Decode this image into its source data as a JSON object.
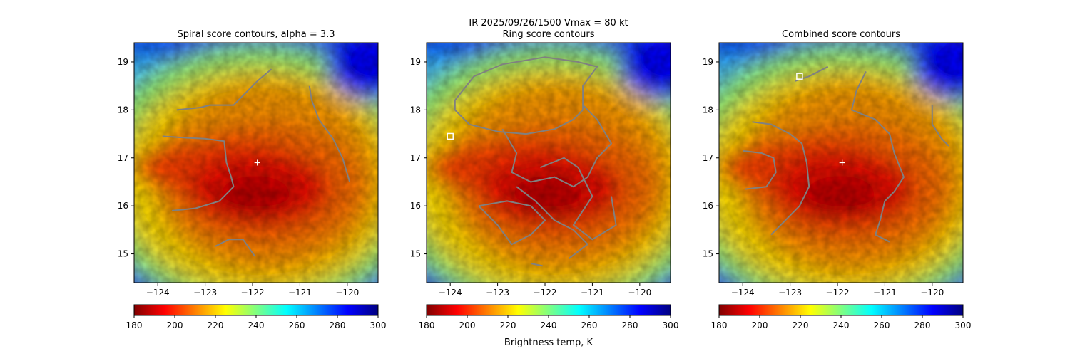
{
  "figure": {
    "suptitle_line1": "IR  2025/09/26/1500    Vmax = 80 kt",
    "colorbar_label": "Brightness temp, K"
  },
  "colors": {
    "contour": "#808080",
    "colormap": [
      "#800000",
      "#ff0000",
      "#ff8000",
      "#ffff00",
      "#80ff80",
      "#00ffff",
      "#0080ff",
      "#0000ff",
      "#000080"
    ]
  },
  "chart_data": [
    {
      "type": "heatmap",
      "title": "Spiral score contours, alpha =  3.3",
      "xlim": [
        -124.5,
        -119.35
      ],
      "ylim": [
        14.4,
        19.4
      ],
      "xticks": [
        -124,
        -123,
        -122,
        -121,
        -120
      ],
      "xtick_labels": [
        "−124",
        "−123",
        "−122",
        "−121",
        "−120"
      ],
      "yticks": [
        15,
        16,
        17,
        18,
        19
      ],
      "ytick_labels": [
        "15",
        "16",
        "17",
        "18",
        "19"
      ],
      "colorbar": {
        "range": [
          180,
          300
        ],
        "ticks": [
          180,
          200,
          220,
          240,
          260,
          280,
          300
        ],
        "tick_labels": [
          "180",
          "200",
          "220",
          "240",
          "260",
          "280",
          "300"
        ]
      },
      "center_marker": {
        "lon": -121.9,
        "lat": 16.9,
        "symbol": "+"
      },
      "contours": [
        [
          [
            -123.6,
            18.0
          ],
          [
            -123.1,
            18.05
          ],
          [
            -122.9,
            18.1
          ],
          [
            -122.4,
            18.1
          ],
          [
            -122.1,
            18.4
          ],
          [
            -121.9,
            18.6
          ],
          [
            -121.6,
            18.85
          ]
        ],
        [
          [
            -123.9,
            17.45
          ],
          [
            -123.4,
            17.42
          ],
          [
            -123.0,
            17.4
          ],
          [
            -122.6,
            17.35
          ],
          [
            -122.55,
            16.9
          ],
          [
            -122.45,
            16.6
          ],
          [
            -122.4,
            16.4
          ],
          [
            -122.7,
            16.1
          ],
          [
            -123.2,
            15.95
          ],
          [
            -123.7,
            15.9
          ]
        ],
        [
          [
            -120.8,
            18.5
          ],
          [
            -120.75,
            18.2
          ],
          [
            -120.6,
            17.8
          ],
          [
            -120.3,
            17.4
          ],
          [
            -120.1,
            17.0
          ],
          [
            -119.95,
            16.5
          ]
        ],
        [
          [
            -122.8,
            15.15
          ],
          [
            -122.5,
            15.3
          ],
          [
            -122.2,
            15.3
          ],
          [
            -121.95,
            14.95
          ]
        ]
      ]
    },
    {
      "type": "heatmap",
      "title": "Ring score contours",
      "xlim": [
        -124.5,
        -119.35
      ],
      "ylim": [
        14.4,
        19.4
      ],
      "xticks": [
        -124,
        -123,
        -122,
        -121,
        -120
      ],
      "xtick_labels": [
        "−124",
        "−123",
        "−122",
        "−121",
        "−120"
      ],
      "yticks": [
        15,
        16,
        17,
        18,
        19
      ],
      "ytick_labels": [
        "15",
        "16",
        "17",
        "18",
        "19"
      ],
      "colorbar": {
        "range": [
          180,
          300
        ],
        "ticks": [
          180,
          200,
          220,
          240,
          260,
          280,
          300
        ],
        "tick_labels": [
          "180",
          "200",
          "220",
          "240",
          "260",
          "280",
          "300"
        ]
      },
      "square_marker": {
        "lon": -124.0,
        "lat": 17.45
      },
      "contours": [
        [
          [
            -123.9,
            18.2
          ],
          [
            -123.5,
            18.7
          ],
          [
            -122.9,
            18.95
          ],
          [
            -122.0,
            19.1
          ],
          [
            -121.3,
            19.0
          ],
          [
            -120.9,
            18.9
          ],
          [
            -121.2,
            18.5
          ],
          [
            -121.2,
            18.0
          ],
          [
            -121.4,
            17.8
          ],
          [
            -121.8,
            17.6
          ],
          [
            -122.4,
            17.5
          ],
          [
            -123.0,
            17.55
          ],
          [
            -123.6,
            17.7
          ],
          [
            -123.9,
            18.0
          ],
          [
            -123.9,
            18.2
          ]
        ],
        [
          [
            -122.9,
            17.6
          ],
          [
            -122.6,
            17.1
          ],
          [
            -122.7,
            16.7
          ],
          [
            -122.3,
            16.5
          ],
          [
            -121.8,
            16.6
          ],
          [
            -121.4,
            16.4
          ],
          [
            -121.1,
            16.6
          ],
          [
            -120.9,
            17.0
          ],
          [
            -120.6,
            17.3
          ],
          [
            -120.9,
            17.8
          ],
          [
            -121.2,
            18.1
          ]
        ],
        [
          [
            -122.1,
            16.8
          ],
          [
            -121.6,
            17.0
          ],
          [
            -121.3,
            16.8
          ],
          [
            -121.0,
            16.2
          ],
          [
            -121.4,
            15.6
          ],
          [
            -121.0,
            15.3
          ],
          [
            -120.5,
            15.6
          ],
          [
            -120.6,
            16.2
          ]
        ],
        [
          [
            -123.4,
            16.0
          ],
          [
            -123.0,
            15.6
          ],
          [
            -122.7,
            15.2
          ],
          [
            -122.3,
            15.4
          ],
          [
            -122.0,
            15.7
          ],
          [
            -122.3,
            16.0
          ],
          [
            -122.8,
            16.1
          ],
          [
            -123.4,
            16.0
          ]
        ],
        [
          [
            -122.6,
            16.4
          ],
          [
            -122.2,
            16.1
          ],
          [
            -121.8,
            15.7
          ],
          [
            -121.4,
            15.5
          ],
          [
            -121.1,
            15.2
          ],
          [
            -121.5,
            14.9
          ]
        ],
        [
          [
            -122.3,
            14.8
          ],
          [
            -122.05,
            14.75
          ]
        ]
      ]
    },
    {
      "type": "heatmap",
      "title": "Combined score contours",
      "xlim": [
        -124.5,
        -119.35
      ],
      "ylim": [
        14.4,
        19.4
      ],
      "xticks": [
        -124,
        -123,
        -122,
        -121,
        -120
      ],
      "xtick_labels": [
        "−124",
        "−123",
        "−122",
        "−121",
        "−120"
      ],
      "yticks": [
        15,
        16,
        17,
        18,
        19
      ],
      "ytick_labels": [
        "15",
        "16",
        "17",
        "18",
        "19"
      ],
      "colorbar": {
        "range": [
          180,
          300
        ],
        "ticks": [
          180,
          200,
          220,
          240,
          260,
          280,
          300
        ],
        "tick_labels": [
          "180",
          "200",
          "220",
          "240",
          "260",
          "280",
          "300"
        ]
      },
      "center_marker": {
        "lon": -121.9,
        "lat": 16.9,
        "symbol": "+"
      },
      "square_marker": {
        "lon": -122.8,
        "lat": 18.7
      },
      "contours": [
        [
          [
            -122.9,
            18.6
          ],
          [
            -122.6,
            18.7
          ],
          [
            -122.4,
            18.8
          ],
          [
            -122.2,
            18.9
          ]
        ],
        [
          [
            -123.8,
            17.75
          ],
          [
            -123.4,
            17.7
          ],
          [
            -123.0,
            17.5
          ],
          [
            -122.75,
            17.3
          ],
          [
            -122.65,
            16.9
          ],
          [
            -122.6,
            16.4
          ],
          [
            -122.8,
            16.0
          ],
          [
            -123.1,
            15.7
          ],
          [
            -123.4,
            15.4
          ]
        ],
        [
          [
            -123.95,
            16.35
          ],
          [
            -123.5,
            16.4
          ],
          [
            -123.3,
            16.7
          ],
          [
            -123.35,
            17.0
          ],
          [
            -123.6,
            17.1
          ],
          [
            -124.0,
            17.15
          ]
        ],
        [
          [
            -121.4,
            18.8
          ],
          [
            -121.6,
            18.4
          ],
          [
            -121.7,
            18.0
          ],
          [
            -121.2,
            17.8
          ],
          [
            -120.9,
            17.5
          ],
          [
            -120.8,
            17.1
          ],
          [
            -120.6,
            16.6
          ],
          [
            -120.8,
            16.3
          ],
          [
            -121.0,
            16.1
          ],
          [
            -121.1,
            15.7
          ],
          [
            -121.2,
            15.4
          ],
          [
            -120.9,
            15.25
          ]
        ],
        [
          [
            -120.0,
            18.1
          ],
          [
            -120.0,
            17.7
          ],
          [
            -119.8,
            17.4
          ],
          [
            -119.65,
            17.25
          ]
        ]
      ]
    }
  ]
}
